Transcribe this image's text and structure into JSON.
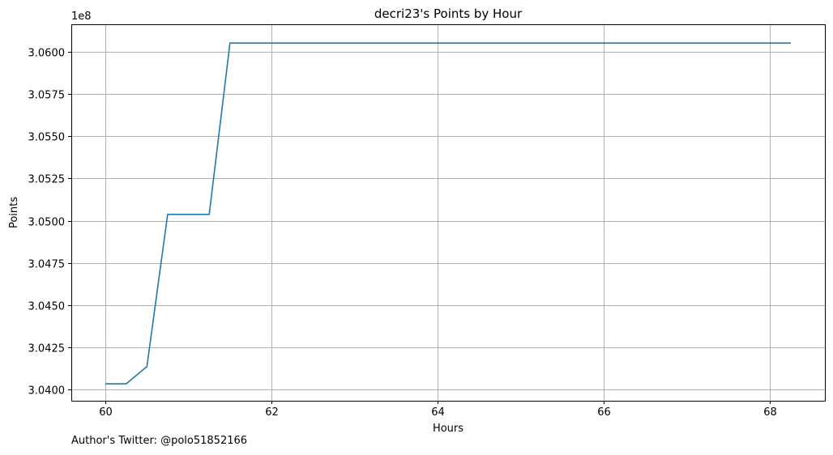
{
  "chart_data": {
    "type": "line",
    "title": "decri23's Points by Hour",
    "xlabel": "Hours",
    "ylabel": "Points",
    "offset_label": "1e8",
    "xlim": [
      59.59,
      68.66
    ],
    "ylim": [
      303935000,
      306161000
    ],
    "xticks": [
      60,
      62,
      64,
      66,
      68
    ],
    "yticks": [
      304000000,
      304250000,
      304500000,
      304750000,
      305000000,
      305250000,
      305500000,
      305750000,
      306000000
    ],
    "ytick_labels": [
      "3.0400",
      "3.0425",
      "3.0450",
      "3.0475",
      "3.0500",
      "3.0525",
      "3.0550",
      "3.0575",
      "3.0600"
    ],
    "grid": true,
    "series": [
      {
        "color": "#1f77b4",
        "x": [
          60.0,
          60.25,
          60.5,
          60.75,
          61.0,
          61.25,
          61.5,
          61.75,
          62.0,
          62.25,
          62.5,
          62.75,
          63.0,
          63.25,
          63.5,
          63.75,
          64.0,
          64.25,
          64.5,
          64.75,
          65.0,
          65.25,
          65.5,
          65.75,
          66.0,
          66.25,
          66.5,
          66.75,
          67.0,
          67.25,
          67.5,
          67.75,
          68.0,
          68.25
        ],
        "y": [
          304035000,
          304035000,
          304137000,
          305037000,
          305037000,
          305037000,
          306050000,
          306050000,
          306050000,
          306050000,
          306050000,
          306050000,
          306050000,
          306050000,
          306050000,
          306050000,
          306050000,
          306050000,
          306050000,
          306050000,
          306050000,
          306050000,
          306050000,
          306050000,
          306050000,
          306050000,
          306050000,
          306050000,
          306050000,
          306050000,
          306050000,
          306050000,
          306050000,
          306050000
        ]
      }
    ]
  },
  "footer": {
    "text": "Author's Twitter: @polo51852166"
  }
}
